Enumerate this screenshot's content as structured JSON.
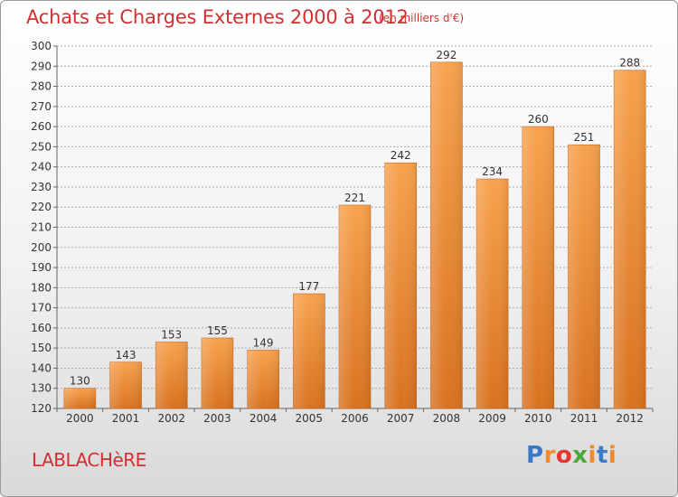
{
  "header": {
    "title": "Achats et Charges Externes 2000 à 2012",
    "subtitle": "(en milliers d'€)"
  },
  "footer": {
    "commune": "LABLACHèRE",
    "logo": [
      "P",
      "r",
      "o",
      "x",
      "i",
      "t",
      "i"
    ]
  },
  "colors": {
    "title": "#d03030",
    "bar_top": "#f7a24e",
    "bar_bottom": "#d9721f",
    "grid": "#aaaaaa"
  },
  "chart_data": {
    "type": "bar",
    "title": "Achats et Charges Externes 2000 à 2012",
    "xlabel": "",
    "ylabel": "",
    "categories": [
      "2000",
      "2001",
      "2002",
      "2003",
      "2004",
      "2005",
      "2006",
      "2007",
      "2008",
      "2009",
      "2010",
      "2011",
      "2012"
    ],
    "values": [
      130,
      143,
      153,
      155,
      149,
      177,
      221,
      242,
      292,
      234,
      260,
      251,
      288
    ],
    "ylim": [
      120,
      300
    ],
    "yticks": [
      120,
      130,
      140,
      150,
      160,
      170,
      180,
      190,
      200,
      210,
      220,
      230,
      240,
      250,
      260,
      270,
      280,
      290,
      300
    ],
    "grid": true,
    "legend": "none"
  }
}
